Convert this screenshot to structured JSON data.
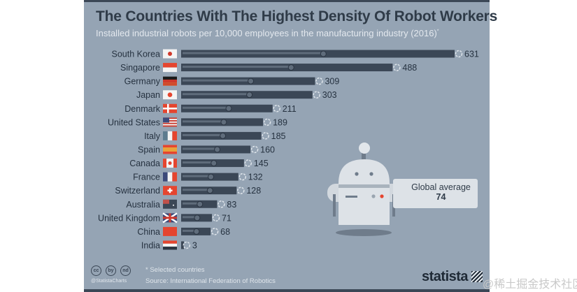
{
  "chart_data": {
    "type": "bar",
    "orientation": "horizontal",
    "title": "The Countries With The Highest Density Of Robot Workers",
    "subtitle": "Installed industrial robots per 10,000 employees in the manufacturing industry (2016)",
    "subtitle_marker": "*",
    "categories": [
      "South Korea",
      "Singapore",
      "Germany",
      "Japan",
      "Denmark",
      "United States",
      "Italy",
      "Spain",
      "Canada",
      "France",
      "Switzerland",
      "Australia",
      "United Kingdom",
      "China",
      "India"
    ],
    "flag_icons": [
      "flag-kr",
      "flag-sg",
      "flag-de",
      "flag-jp",
      "flag-dk",
      "flag-us",
      "flag-it",
      "flag-es",
      "flag-ca",
      "flag-fr",
      "flag-ch",
      "flag-au",
      "flag-gb",
      "flag-cn",
      "flag-in"
    ],
    "values": [
      631,
      488,
      309,
      303,
      211,
      189,
      185,
      160,
      145,
      132,
      128,
      83,
      71,
      68,
      3
    ],
    "xlim": [
      0,
      631
    ],
    "grid": false,
    "bar_color": "#3b4756",
    "annotation": {
      "label": "Global average",
      "value": "74"
    }
  },
  "footer": {
    "note": "* Selected countries",
    "source": "Source: International Federation of Robotics",
    "handle": "@StatistaCharts",
    "license_icons": [
      "cc",
      "by",
      "nd"
    ],
    "brand": "statista"
  },
  "watermark": "@稀土掘金技术社区"
}
